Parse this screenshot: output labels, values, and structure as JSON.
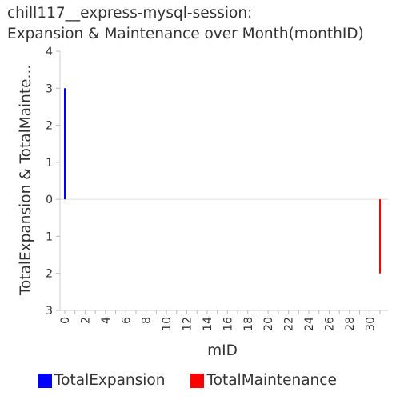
{
  "chart_data": {
    "type": "bar",
    "title_lines": [
      "chill117__express-mysql-session:",
      "Expansion & Maintenance over Month(monthID)"
    ],
    "xlabel": "mID",
    "ylabel": "TotalExpansion & TotalMainte...",
    "x_range": [
      0,
      31
    ],
    "x_ticks": [
      "0",
      "2",
      "4",
      "6",
      "8",
      "10",
      "12",
      "14",
      "16",
      "18",
      "20",
      "22",
      "24",
      "26",
      "28",
      "30"
    ],
    "y_ticks": [
      {
        "value": 4,
        "label": "4"
      },
      {
        "value": 3,
        "label": "3"
      },
      {
        "value": 2,
        "label": "2"
      },
      {
        "value": 1,
        "label": "1"
      },
      {
        "value": 0,
        "label": "0"
      },
      {
        "value": -1,
        "label": "1"
      },
      {
        "value": -2,
        "label": "2"
      },
      {
        "value": -3,
        "label": "3"
      }
    ],
    "ylim": [
      -3,
      4
    ],
    "series": [
      {
        "name": "TotalExpansion",
        "color": "#0000ff",
        "points": [
          {
            "x": 0,
            "y": 3
          }
        ]
      },
      {
        "name": "TotalMaintenance",
        "color": "#ff0000",
        "points": [
          {
            "x": 31,
            "y": -2
          }
        ]
      }
    ]
  }
}
